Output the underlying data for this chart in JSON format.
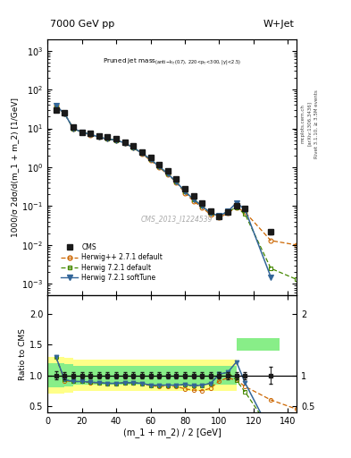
{
  "title_top": "7000 GeV pp",
  "title_right": "W+Jet",
  "annotation": "Pruned jet mass",
  "annotation2": "(anti-k_{T}(0.7), 220<p_{T}<300, |y|<2.5)",
  "watermark": "CMS_2013_I1224539",
  "rivet_label": "Rivet 3.1.10, ≥ 3.5M events",
  "arxiv_label": "[arXiv:1306.3436]",
  "mcplots_label": "mcplots.cern.ch",
  "ylabel_main": "1000/σ 2dσ/d(m_1 + m_2) [1/GeV]",
  "ylabel_ratio": "Ratio to CMS",
  "xlabel": "(m_1 + m_2) / 2 [GeV]",
  "cms_x": [
    5,
    10,
    15,
    20,
    25,
    30,
    35,
    40,
    45,
    50,
    55,
    60,
    65,
    70,
    75,
    80,
    85,
    90,
    95,
    100,
    105,
    110,
    115,
    130
  ],
  "cms_y": [
    30,
    25,
    11,
    8,
    7.5,
    6.5,
    6.0,
    5.5,
    4.5,
    3.5,
    2.5,
    1.8,
    1.2,
    0.8,
    0.5,
    0.28,
    0.18,
    0.12,
    0.075,
    0.055,
    0.07,
    0.1,
    0.085,
    0.022
  ],
  "cms_yerr": [
    2.0,
    1.5,
    0.6,
    0.4,
    0.35,
    0.3,
    0.3,
    0.28,
    0.22,
    0.18,
    0.12,
    0.09,
    0.06,
    0.04,
    0.025,
    0.014,
    0.009,
    0.006,
    0.004,
    0.003,
    0.004,
    0.006,
    0.005,
    0.003
  ],
  "hpp_x": [
    5,
    10,
    15,
    20,
    25,
    30,
    35,
    40,
    45,
    50,
    55,
    60,
    65,
    70,
    75,
    80,
    85,
    90,
    95,
    100,
    105,
    110,
    115,
    130,
    145
  ],
  "hpp_y": [
    38,
    24,
    10,
    8,
    6.8,
    5.9,
    5.3,
    4.9,
    4.1,
    3.2,
    2.2,
    1.5,
    1.0,
    0.65,
    0.41,
    0.22,
    0.135,
    0.092,
    0.06,
    0.05,
    0.067,
    0.092,
    0.07,
    0.013,
    0.01
  ],
  "h721d_x": [
    5,
    10,
    15,
    20,
    25,
    30,
    35,
    40,
    45,
    50,
    55,
    60,
    65,
    70,
    75,
    80,
    85,
    90,
    95,
    100,
    105,
    110,
    115,
    130,
    145
  ],
  "h721d_y": [
    38,
    24,
    10,
    8,
    7.0,
    6.0,
    5.3,
    5.0,
    4.2,
    3.2,
    2.3,
    1.6,
    1.05,
    0.68,
    0.42,
    0.24,
    0.15,
    0.1,
    0.066,
    0.056,
    0.073,
    0.092,
    0.062,
    0.0025,
    0.0013
  ],
  "h721s_x": [
    5,
    10,
    15,
    20,
    25,
    30,
    35,
    40,
    45,
    50,
    55,
    60,
    65,
    70,
    75,
    80,
    85,
    90,
    95,
    100,
    105,
    110,
    115,
    130
  ],
  "h721s_y": [
    38,
    24,
    10,
    8,
    7.0,
    6.0,
    5.3,
    5.0,
    4.2,
    3.2,
    2.3,
    1.6,
    1.05,
    0.68,
    0.42,
    0.24,
    0.15,
    0.1,
    0.066,
    0.056,
    0.073,
    0.122,
    0.082,
    0.0015
  ],
  "hpp_ratio": [
    1.3,
    0.91,
    0.9,
    0.9,
    0.88,
    0.88,
    0.87,
    0.87,
    0.88,
    0.88,
    0.87,
    0.83,
    0.82,
    0.82,
    0.82,
    0.78,
    0.76,
    0.75,
    0.79,
    0.91,
    0.96,
    0.92,
    0.82,
    0.6,
    0.45
  ],
  "h721d_ratio": [
    1.3,
    0.93,
    0.9,
    0.9,
    0.89,
    0.88,
    0.87,
    0.87,
    0.88,
    0.88,
    0.87,
    0.84,
    0.84,
    0.84,
    0.84,
    0.85,
    0.83,
    0.84,
    0.87,
    1.02,
    1.05,
    0.92,
    0.73,
    0.11,
    0.06
  ],
  "h721s_ratio": [
    1.3,
    0.93,
    0.9,
    0.9,
    0.89,
    0.88,
    0.87,
    0.87,
    0.88,
    0.88,
    0.87,
    0.84,
    0.84,
    0.84,
    0.84,
    0.85,
    0.83,
    0.84,
    0.87,
    1.02,
    1.05,
    1.22,
    0.88,
    0.068
  ],
  "cms_ratio_err": [
    0.07,
    0.06,
    0.055,
    0.05,
    0.047,
    0.046,
    0.05,
    0.05,
    0.049,
    0.051,
    0.048,
    0.05,
    0.05,
    0.05,
    0.05,
    0.05,
    0.05,
    0.05,
    0.053,
    0.055,
    0.057,
    0.06,
    0.059,
    0.136
  ],
  "band_yellow_edges": [
    0,
    5,
    10,
    15,
    20,
    25,
    30,
    35,
    40,
    45,
    50,
    55,
    60,
    65,
    70,
    75,
    80,
    90,
    100,
    110,
    120,
    135
  ],
  "band_yellow_lo": [
    0.7,
    0.7,
    0.72,
    0.75,
    0.75,
    0.75,
    0.75,
    0.75,
    0.75,
    0.75,
    0.75,
    0.75,
    0.75,
    0.75,
    0.75,
    0.75,
    0.75,
    0.75,
    0.75,
    1.4,
    1.4,
    0.4
  ],
  "band_yellow_hi": [
    1.3,
    1.3,
    1.28,
    1.25,
    1.25,
    1.25,
    1.25,
    1.25,
    1.25,
    1.25,
    1.25,
    1.25,
    1.25,
    1.25,
    1.25,
    1.25,
    1.25,
    1.25,
    1.25,
    1.6,
    1.6,
    2.2
  ],
  "band_green_edges": [
    0,
    5,
    10,
    15,
    20,
    25,
    30,
    35,
    40,
    45,
    50,
    55,
    60,
    65,
    70,
    75,
    80,
    90,
    100,
    110,
    120,
    135
  ],
  "band_green_lo": [
    0.8,
    0.8,
    0.82,
    0.85,
    0.85,
    0.85,
    0.85,
    0.85,
    0.85,
    0.85,
    0.85,
    0.85,
    0.85,
    0.85,
    0.85,
    0.85,
    0.85,
    0.85,
    0.85,
    1.4,
    1.4,
    1.85
  ],
  "band_green_hi": [
    1.2,
    1.2,
    1.18,
    1.15,
    1.15,
    1.15,
    1.15,
    1.15,
    1.15,
    1.15,
    1.15,
    1.15,
    1.15,
    1.15,
    1.15,
    1.15,
    1.15,
    1.15,
    1.15,
    1.6,
    1.6,
    0.45
  ],
  "color_cms": "#1a1a1a",
  "color_hpp": "#cc6600",
  "color_h721d": "#448800",
  "color_h721s": "#336699",
  "color_yellow": "#ffff88",
  "color_green": "#88ee88",
  "ylim_main": [
    0.0005,
    2000
  ],
  "ylim_ratio": [
    0.4,
    2.3
  ],
  "xlim": [
    0,
    145
  ]
}
